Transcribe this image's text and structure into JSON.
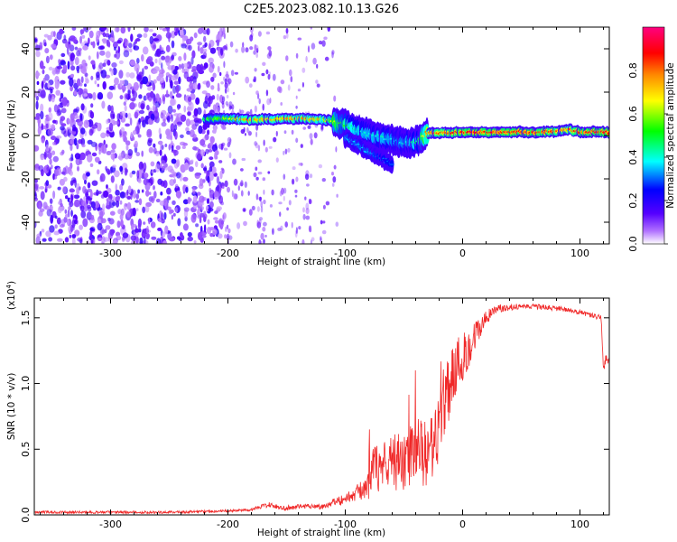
{
  "title": "C2E5.2023.082.10.13.G26",
  "colors": {
    "snr_line": "#f02828",
    "spec_dots": "#7a1ee6"
  },
  "chart_data": [
    {
      "type": "heatmap",
      "xlabel": "Height of straight line (km)",
      "ylabel": "Frequency (Hz)",
      "xlim": [
        -365,
        125
      ],
      "ylim": [
        -50,
        50
      ],
      "x_ticks": [
        -300,
        -200,
        -100,
        0,
        100
      ],
      "y_ticks": [
        -40,
        -20,
        0,
        20,
        40
      ],
      "colorbar": {
        "label": "Normalized spectral amplitude",
        "range": [
          0,
          1
        ],
        "ticks": [
          0.0,
          0.2,
          0.4,
          0.6,
          0.8
        ],
        "tick_labels": [
          "0.0",
          "0.2",
          "0.4",
          "0.6",
          "0.8"
        ],
        "colormap": [
          "#ffffff",
          "#8800ff",
          "#0000ff",
          "#00ffff",
          "#00ff00",
          "#ffff00",
          "#ff8800",
          "#ff0000",
          "#ff0080"
        ]
      },
      "noise_region_x": [
        -365,
        -205
      ],
      "sparse_noise_x": [
        -205,
        -105
      ],
      "signal_track": {
        "x": [
          -220,
          -200,
          -180,
          -160,
          -140,
          -120,
          -105,
          -95,
          -85,
          -75,
          -65,
          -55,
          -45,
          -38,
          -30,
          -20,
          -10,
          0,
          20,
          40,
          60,
          80,
          90,
          100,
          125
        ],
        "freq": [
          7.5,
          7.8,
          7.2,
          7.6,
          7.8,
          7.4,
          6.0,
          4.0,
          1.5,
          0.0,
          -1.5,
          -3.0,
          -3.5,
          -3.0,
          1.0,
          1.2,
          1.3,
          1.5,
          1.6,
          1.6,
          1.5,
          2.0,
          2.8,
          1.6,
          1.6
        ],
        "amplitude": [
          0.5,
          0.6,
          0.75,
          0.7,
          0.75,
          0.7,
          0.55,
          0.45,
          0.4,
          0.4,
          0.4,
          0.35,
          0.4,
          0.45,
          0.75,
          0.8,
          0.8,
          0.85,
          0.85,
          0.85,
          0.85,
          0.8,
          0.75,
          0.85,
          0.85
        ]
      },
      "secondary_track": {
        "x": [
          -100,
          -90,
          -80,
          -70,
          -60
        ],
        "freq": [
          -1.0,
          -4.0,
          -7.5,
          -10.0,
          -13.0
        ],
        "amplitude": [
          0.35,
          0.35,
          0.35,
          0.3,
          0.3
        ]
      }
    },
    {
      "type": "line",
      "xlabel": "Height of straight line (km)",
      "ylabel": "SNR (10 * v/v)",
      "y_multiplier": "(x10",
      "y_multiplier_exp": "4",
      "y_multiplier_close": ")",
      "xlim": [
        -365,
        125
      ],
      "ylim": [
        0,
        1.65
      ],
      "x_ticks": [
        -300,
        -200,
        -100,
        0,
        100
      ],
      "y_ticks": [
        0.0,
        0.5,
        1.0,
        1.5
      ],
      "y_tick_labels": [
        "0.0",
        "0.5",
        "1.0",
        "1.5"
      ],
      "series": [
        {
          "x": [
            -365,
            -300,
            -250,
            -200,
            -180,
            -165,
            -155,
            -140,
            -130,
            -120,
            -110,
            -100,
            -90,
            -80,
            -75,
            -70,
            -60,
            -50,
            -40,
            -30,
            -22,
            -18,
            -10,
            0,
            10,
            20,
            30,
            50,
            70,
            90,
            110,
            118,
            120,
            122,
            125
          ],
          "y": [
            0.02,
            0.02,
            0.02,
            0.03,
            0.04,
            0.08,
            0.05,
            0.06,
            0.07,
            0.06,
            0.1,
            0.12,
            0.17,
            0.22,
            0.4,
            0.3,
            0.42,
            0.38,
            0.5,
            0.45,
            0.55,
            0.8,
            1.05,
            1.2,
            1.35,
            1.5,
            1.57,
            1.59,
            1.58,
            1.56,
            1.52,
            1.5,
            1.1,
            1.2,
            1.18
          ],
          "noise": [
            0.01,
            0.01,
            0.01,
            0.01,
            0.01,
            0.02,
            0.02,
            0.02,
            0.02,
            0.02,
            0.03,
            0.04,
            0.06,
            0.1,
            0.18,
            0.16,
            0.22,
            0.22,
            0.25,
            0.25,
            0.28,
            0.3,
            0.28,
            0.2,
            0.12,
            0.06,
            0.03,
            0.02,
            0.02,
            0.02,
            0.02,
            0.02,
            0.04,
            0.04,
            0.04
          ]
        }
      ]
    }
  ]
}
